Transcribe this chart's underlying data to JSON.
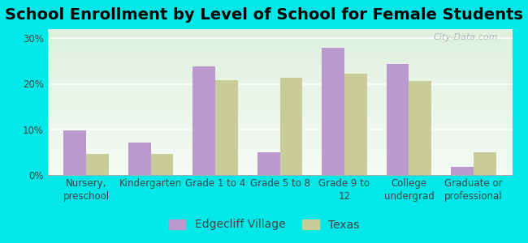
{
  "title": "School Enrollment by Level of School for Female Students",
  "categories": [
    "Nursery,\npreschool",
    "Kindergarten",
    "Grade 1 to 4",
    "Grade 5 to 8",
    "Grade 9 to\n12",
    "College\nundergrad",
    "Graduate or\nprofessional"
  ],
  "edgecliff_values": [
    9.8,
    7.1,
    23.8,
    5.0,
    27.9,
    24.4,
    1.8
  ],
  "texas_values": [
    4.7,
    4.6,
    20.8,
    21.3,
    22.2,
    20.6,
    5.0
  ],
  "edgecliff_color": "#bb99cc",
  "texas_color": "#c8cc99",
  "background_outer": "#00e8e8",
  "background_inner_top": "#e8f5e8",
  "background_inner_bottom": "#d8f0d0",
  "ylabel_ticks": [
    0,
    10,
    20,
    30
  ],
  "ytick_labels": [
    "0%",
    "10%",
    "20%",
    "30%"
  ],
  "ylim": [
    0,
    32
  ],
  "bar_width": 0.35,
  "legend_label_edgecliff": "Edgecliff Village",
  "legend_label_texas": "Texas",
  "title_fontsize": 14,
  "tick_fontsize": 8.5,
  "legend_fontsize": 10,
  "watermark": "City-Data.com"
}
